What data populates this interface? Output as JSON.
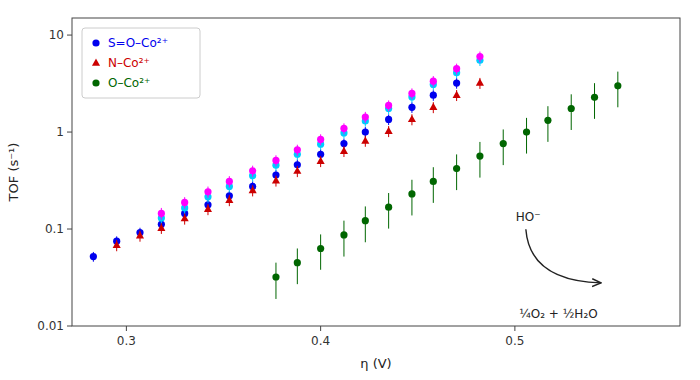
{
  "chart_data": {
    "type": "scatter",
    "x_label": "η (V)",
    "y_label": "TOF (s⁻¹)",
    "log": "y",
    "grid": false,
    "legend": "upper left",
    "xlim": [
      0.272,
      0.585
    ],
    "ylim": [
      0.01,
      15
    ],
    "xticks": [
      0.3,
      0.4,
      0.5
    ],
    "yticks": [
      0.01,
      0.1,
      1,
      10
    ],
    "annotations": [
      {
        "text": "HO⁻"
      },
      {
        "text": "¼O₂ + ½H₂O"
      }
    ],
    "series": [
      {
        "name": "S=O–Co²⁺",
        "color": "#0000EE",
        "marker": "circle",
        "x": [
          0.283,
          0.295,
          0.307,
          0.318,
          0.33,
          0.342,
          0.353,
          0.365,
          0.377,
          0.388,
          0.4,
          0.412,
          0.423,
          0.435,
          0.447,
          0.458,
          0.47
        ],
        "values": [
          0.052,
          0.075,
          0.092,
          0.112,
          0.145,
          0.178,
          0.22,
          0.275,
          0.36,
          0.46,
          0.59,
          0.76,
          1.0,
          1.35,
          1.8,
          2.4,
          3.2
        ],
        "errors": [
          0.006,
          0.009,
          0.011,
          0.014,
          0.018,
          0.022,
          0.028,
          0.035,
          0.045,
          0.058,
          0.075,
          0.095,
          0.125,
          0.17,
          0.225,
          0.3,
          0.4
        ]
      },
      {
        "color": "#00CCFF",
        "marker": "circle",
        "x": [
          0.318,
          0.33,
          0.342,
          0.353,
          0.365,
          0.377,
          0.388,
          0.4,
          0.412,
          0.423,
          0.435,
          0.447,
          0.458,
          0.47,
          0.482
        ],
        "values": [
          0.13,
          0.165,
          0.215,
          0.275,
          0.355,
          0.455,
          0.59,
          0.75,
          0.98,
          1.3,
          1.75,
          2.3,
          3.1,
          4.1,
          5.5
        ],
        "errors": [
          0.018,
          0.022,
          0.028,
          0.036,
          0.046,
          0.058,
          0.076,
          0.096,
          0.125,
          0.165,
          0.222,
          0.292,
          0.393,
          0.521,
          0.7
        ]
      },
      {
        "color": "#FF00FF",
        "marker": "circle",
        "x": [
          0.318,
          0.33,
          0.342,
          0.353,
          0.365,
          0.377,
          0.388,
          0.4,
          0.412,
          0.423,
          0.435,
          0.447,
          0.458,
          0.47,
          0.482
        ],
        "values": [
          0.145,
          0.188,
          0.242,
          0.31,
          0.398,
          0.51,
          0.655,
          0.84,
          1.09,
          1.43,
          1.88,
          2.5,
          3.35,
          4.5,
          6.0
        ],
        "errors": [
          0.02,
          0.025,
          0.032,
          0.041,
          0.052,
          0.066,
          0.085,
          0.108,
          0.14,
          0.183,
          0.24,
          0.318,
          0.426,
          0.572,
          0.765
        ]
      },
      {
        "name": "N–Co²⁺",
        "color": "#CC0000",
        "marker": "triangle",
        "x": [
          0.295,
          0.307,
          0.318,
          0.33,
          0.342,
          0.353,
          0.365,
          0.377,
          0.388,
          0.4,
          0.412,
          0.423,
          0.435,
          0.447,
          0.458,
          0.47,
          0.482
        ],
        "values": [
          0.068,
          0.085,
          0.102,
          0.128,
          0.16,
          0.198,
          0.25,
          0.315,
          0.395,
          0.5,
          0.635,
          0.81,
          1.02,
          1.35,
          1.8,
          2.4,
          3.2
        ],
        "errors": [
          0.009,
          0.011,
          0.013,
          0.017,
          0.021,
          0.026,
          0.033,
          0.041,
          0.052,
          0.065,
          0.082,
          0.105,
          0.133,
          0.176,
          0.234,
          0.312,
          0.416
        ]
      },
      {
        "name": "O–Co²⁺",
        "color": "#006600",
        "marker": "circle",
        "x": [
          0.377,
          0.388,
          0.4,
          0.412,
          0.423,
          0.435,
          0.447,
          0.458,
          0.47,
          0.482,
          0.494,
          0.506,
          0.517,
          0.529,
          0.541,
          0.553
        ],
        "values": [
          0.032,
          0.045,
          0.063,
          0.087,
          0.122,
          0.168,
          0.23,
          0.31,
          0.42,
          0.565,
          0.76,
          1.0,
          1.32,
          1.75,
          2.28,
          3.0
        ],
        "errors": [
          0.013,
          0.018,
          0.025,
          0.035,
          0.049,
          0.067,
          0.092,
          0.124,
          0.168,
          0.226,
          0.304,
          0.4,
          0.528,
          0.7,
          0.912,
          1.2
        ]
      }
    ]
  }
}
